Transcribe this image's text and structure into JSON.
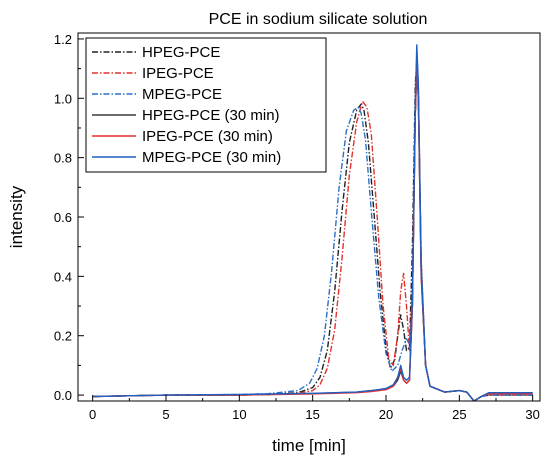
{
  "chart_data": {
    "type": "line",
    "title": "PCE in sodium silicate solution",
    "xlabel": "time [min]",
    "ylabel": "intensity",
    "xlim": [
      -1,
      30.5
    ],
    "ylim": [
      -0.02,
      1.22
    ],
    "xticks": [
      0,
      5,
      10,
      15,
      20,
      25,
      30
    ],
    "xtick_labels": [
      "0",
      "5",
      "10",
      "15",
      "20",
      "25",
      "30"
    ],
    "yticks": [
      0.0,
      0.2,
      0.4,
      0.6,
      0.8,
      1.0,
      1.2
    ],
    "ytick_labels": [
      "0.0",
      "0.2",
      "0.4",
      "0.6",
      "0.8",
      "1.0",
      "1.2"
    ],
    "grid": false,
    "legend_position": "top-left",
    "series": [
      {
        "name": "HPEG-PCE",
        "color": "#222222",
        "style": "dash-dot",
        "x": [
          0,
          5,
          10,
          12,
          14,
          15,
          15.5,
          16,
          16.5,
          17,
          17.5,
          18,
          18.3,
          18.5,
          18.8,
          19.2,
          19.6,
          20,
          20.3,
          20.6,
          20.8,
          21,
          21.2,
          21.4,
          21.6,
          21.8,
          22,
          22.1,
          22.2,
          22.4,
          22.7,
          23,
          24,
          25,
          25.5,
          26,
          26.5,
          27,
          30
        ],
        "y": [
          -0.005,
          0,
          0,
          0.003,
          0.008,
          0.025,
          0.06,
          0.15,
          0.35,
          0.62,
          0.85,
          0.96,
          0.98,
          0.96,
          0.85,
          0.6,
          0.35,
          0.16,
          0.09,
          0.12,
          0.2,
          0.27,
          0.22,
          0.15,
          0.16,
          0.5,
          1.05,
          1.12,
          1.02,
          0.45,
          0.1,
          0.03,
          0.01,
          0.015,
          0.01,
          -0.02,
          -0.005,
          0,
          0
        ]
      },
      {
        "name": "IPEG-PCE",
        "color": "#e0322e",
        "style": "dash-dot",
        "x": [
          0,
          5,
          10,
          12,
          14,
          15,
          15.5,
          16,
          16.5,
          17,
          17.5,
          18,
          18.4,
          18.7,
          19,
          19.4,
          19.8,
          20.2,
          20.5,
          20.8,
          21,
          21.2,
          21.4,
          21.6,
          21.8,
          22,
          22.1,
          22.2,
          22.4,
          22.7,
          23,
          24,
          25,
          25.5,
          26,
          26.5,
          27,
          30
        ],
        "y": [
          -0.005,
          0,
          0,
          0.002,
          0.006,
          0.015,
          0.035,
          0.09,
          0.22,
          0.46,
          0.74,
          0.92,
          0.99,
          0.97,
          0.88,
          0.6,
          0.3,
          0.12,
          0.1,
          0.2,
          0.35,
          0.41,
          0.3,
          0.15,
          0.35,
          0.95,
          1.12,
          1.05,
          0.45,
          0.1,
          0.03,
          0.01,
          0.015,
          0.01,
          -0.02,
          -0.005,
          0,
          0
        ]
      },
      {
        "name": "MPEG-PCE",
        "color": "#2c6fc8",
        "style": "dash-dot",
        "x": [
          0,
          5,
          10,
          12,
          14,
          14.8,
          15.3,
          15.8,
          16.3,
          16.8,
          17.3,
          17.8,
          18.1,
          18.3,
          18.6,
          19,
          19.5,
          20,
          20.4,
          20.8,
          21.1,
          21.4,
          21.6,
          21.8,
          22,
          22.1,
          22.2,
          22.4,
          22.7,
          23,
          24,
          25,
          25.5,
          26,
          26.5,
          27,
          30
        ],
        "y": [
          -0.005,
          0,
          0.002,
          0.005,
          0.015,
          0.04,
          0.09,
          0.2,
          0.42,
          0.7,
          0.89,
          0.96,
          0.97,
          0.95,
          0.86,
          0.62,
          0.33,
          0.14,
          0.08,
          0.1,
          0.15,
          0.19,
          0.17,
          0.3,
          0.95,
          1.15,
          1.05,
          0.45,
          0.1,
          0.03,
          0.01,
          0.015,
          0.01,
          -0.02,
          -0.005,
          0,
          0
        ]
      },
      {
        "name": "HPEG-PCE (30 min)",
        "color": "#3a3a3a",
        "style": "solid",
        "x": [
          0,
          5,
          10,
          15,
          18,
          19,
          20,
          20.5,
          20.8,
          21,
          21.2,
          21.4,
          21.6,
          21.8,
          22,
          22.1,
          22.2,
          22.4,
          22.7,
          23,
          24,
          25,
          25.5,
          26,
          26.5,
          27,
          30
        ],
        "y": [
          -0.005,
          0,
          0,
          0.005,
          0.01,
          0.015,
          0.02,
          0.03,
          0.05,
          0.08,
          0.05,
          0.04,
          0.05,
          0.3,
          0.95,
          1.1,
          1.0,
          0.4,
          0.1,
          0.03,
          0.01,
          0.015,
          0.01,
          -0.02,
          -0.005,
          0.005,
          0.005
        ]
      },
      {
        "name": "IPEG-PCE (30 min)",
        "color": "#e8302c",
        "style": "solid",
        "x": [
          0,
          5,
          10,
          15,
          18,
          19,
          20,
          20.5,
          20.8,
          21,
          21.2,
          21.4,
          21.6,
          21.8,
          22,
          22.1,
          22.2,
          22.4,
          22.7,
          23,
          24,
          25,
          25.5,
          26,
          26.5,
          27,
          30
        ],
        "y": [
          -0.005,
          0,
          0,
          0.004,
          0.008,
          0.012,
          0.018,
          0.03,
          0.06,
          0.09,
          0.05,
          0.04,
          0.05,
          0.3,
          0.95,
          1.1,
          1.02,
          0.4,
          0.1,
          0.03,
          0.01,
          0.015,
          0.01,
          -0.02,
          -0.005,
          0.005,
          0.005
        ]
      },
      {
        "name": "MPEG-PCE (30 min)",
        "color": "#1f5fc0",
        "style": "solid",
        "x": [
          0,
          5,
          10,
          15,
          18,
          19,
          20,
          20.5,
          20.8,
          21,
          21.2,
          21.4,
          21.6,
          21.8,
          22,
          22.1,
          22.2,
          22.4,
          22.7,
          23,
          24,
          25,
          25.5,
          26,
          26.5,
          27,
          30
        ],
        "y": [
          -0.005,
          0,
          0.002,
          0.006,
          0.01,
          0.015,
          0.022,
          0.035,
          0.06,
          0.1,
          0.06,
          0.05,
          0.06,
          0.32,
          0.98,
          1.18,
          1.05,
          0.42,
          0.1,
          0.03,
          0.01,
          0.015,
          0.01,
          -0.02,
          -0.005,
          0.008,
          0.008
        ]
      }
    ]
  }
}
